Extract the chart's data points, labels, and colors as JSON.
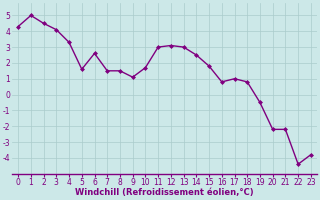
{
  "x": [
    0,
    1,
    2,
    3,
    4,
    5,
    6,
    7,
    8,
    9,
    10,
    11,
    12,
    13,
    14,
    15,
    16,
    17,
    18,
    19,
    20,
    21,
    22,
    23
  ],
  "y": [
    4.3,
    5.0,
    4.5,
    4.1,
    3.3,
    1.6,
    2.6,
    1.5,
    1.5,
    1.1,
    1.7,
    3.0,
    3.1,
    3.0,
    2.5,
    1.8,
    0.8,
    1.0,
    0.8,
    -0.5,
    -2.2,
    -2.2,
    -4.4,
    -3.8
  ],
  "line_color": "#800080",
  "marker": "D",
  "marker_size": 2.0,
  "bg_color": "#cce8e8",
  "grid_color": "#aacccc",
  "xlabel": "Windchill (Refroidissement éolien,°C)",
  "xlabel_color": "#800080",
  "tick_color": "#800080",
  "axis_color": "#800080",
  "ylim": [
    -5.0,
    5.8
  ],
  "xlim": [
    -0.5,
    23.5
  ],
  "yticks": [
    -4,
    -3,
    -2,
    -1,
    0,
    1,
    2,
    3,
    4,
    5
  ],
  "xticks": [
    0,
    1,
    2,
    3,
    4,
    5,
    6,
    7,
    8,
    9,
    10,
    11,
    12,
    13,
    14,
    15,
    16,
    17,
    18,
    19,
    20,
    21,
    22,
    23
  ],
  "tick_fontsize": 5.5,
  "xlabel_fontsize": 6.0,
  "linewidth": 1.0
}
